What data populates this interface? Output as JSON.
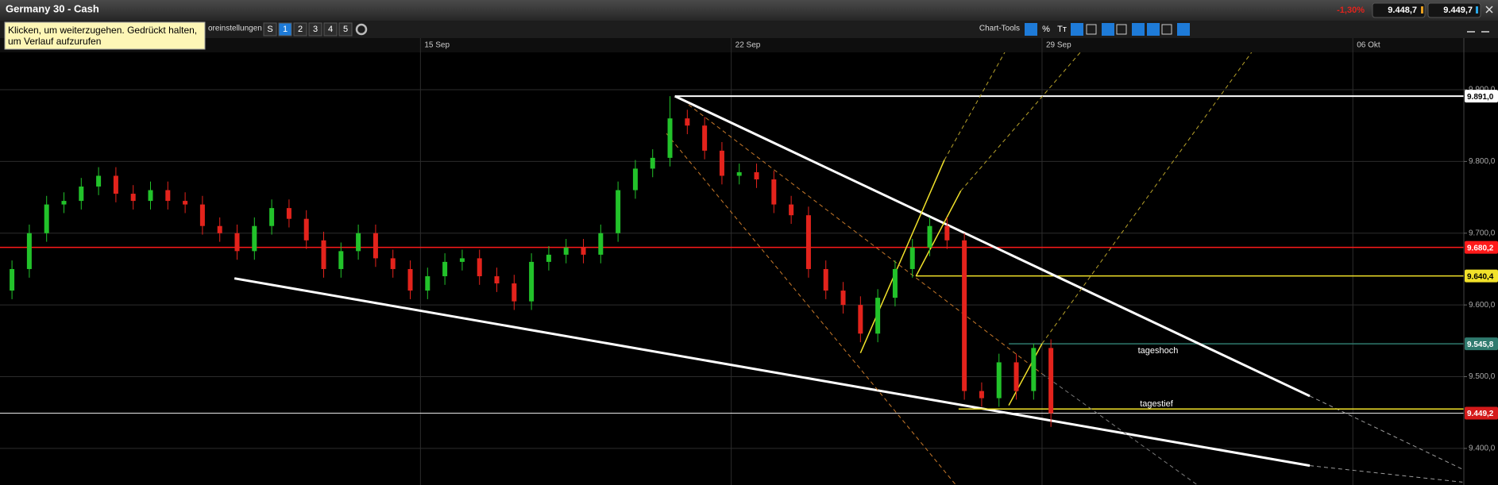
{
  "header": {
    "title": "Germany 30 - Cash",
    "change": "-1,30%",
    "bid": "9.448,7",
    "ask": "9.449,7"
  },
  "toolbar": {
    "tooltip": [
      "Klicken, um weiterzugehen. Gedrückt halten,",
      "um Verlauf aufzurufen"
    ],
    "presets_label": "oreinstellungen",
    "buttons": [
      "S",
      "1",
      "2",
      "3",
      "4",
      "5"
    ],
    "tools_label": "Chart-Tools",
    "tool_texts": [
      "%",
      "Tт"
    ]
  },
  "chart_data": {
    "type": "candlestick",
    "x": [
      -9.2,
      -8.81,
      -8.42,
      -8.03,
      -7.64,
      -7.25,
      -6.86,
      -6.47,
      -6.08,
      -5.69,
      -5.3,
      -4.91,
      -4.52,
      -4.13,
      -3.74,
      -3.35,
      -2.96,
      -2.57,
      -2.18,
      -1.79,
      -1.4,
      -1.01,
      -0.62,
      -0.23,
      0.16,
      0.55,
      0.94,
      1.33,
      1.72,
      2.11,
      2.5,
      2.89,
      3.28,
      3.67,
      4.06,
      4.45,
      4.84,
      5.23,
      5.62,
      6.01,
      6.4,
      6.79,
      7.18,
      7.57,
      7.96,
      8.35,
      8.74,
      9.13,
      9.52,
      9.91,
      10.3,
      10.69,
      11.08,
      11.47,
      11.86,
      12.25,
      12.64,
      13.03,
      13.42,
      13.81,
      14.2
    ],
    "open": [
      9620,
      9650,
      9700,
      9740,
      9745,
      9765,
      9780,
      9755,
      9745,
      9760,
      9745,
      9740,
      9710,
      9700,
      9675,
      9710,
      9735,
      9720,
      9690,
      9650,
      9675,
      9700,
      9665,
      9650,
      9620,
      9640,
      9660,
      9665,
      9640,
      9630,
      9605,
      9660,
      9670,
      9680,
      9670,
      9700,
      9760,
      9790,
      9805,
      9860,
      9850,
      9815,
      9780,
      9785,
      9775,
      9740,
      9725,
      9650,
      9620,
      9600,
      9560,
      9610,
      9650,
      9680,
      9710,
      9690,
      9480,
      9470,
      9520,
      9480,
      9540
    ],
    "high": [
      9662,
      9712,
      9752,
      9757,
      9777,
      9792,
      9792,
      9767,
      9772,
      9772,
      9757,
      9752,
      9722,
      9712,
      9722,
      9747,
      9747,
      9732,
      9702,
      9687,
      9712,
      9712,
      9677,
      9662,
      9652,
      9672,
      9677,
      9677,
      9652,
      9642,
      9672,
      9682,
      9692,
      9692,
      9712,
      9772,
      9802,
      9817,
      9891,
      9872,
      9862,
      9827,
      9797,
      9797,
      9787,
      9752,
      9737,
      9662,
      9632,
      9612,
      9622,
      9662,
      9692,
      9722,
      9722,
      9700,
      9492,
      9532,
      9532,
      9546,
      9552
    ],
    "low": [
      9608,
      9638,
      9688,
      9728,
      9733,
      9753,
      9743,
      9733,
      9733,
      9733,
      9728,
      9698,
      9688,
      9663,
      9663,
      9698,
      9708,
      9678,
      9638,
      9638,
      9663,
      9653,
      9638,
      9608,
      9608,
      9628,
      9648,
      9628,
      9618,
      9593,
      9593,
      9648,
      9658,
      9658,
      9658,
      9688,
      9748,
      9778,
      9793,
      9838,
      9803,
      9768,
      9768,
      9763,
      9728,
      9713,
      9638,
      9608,
      9588,
      9548,
      9548,
      9598,
      9638,
      9668,
      9678,
      9468,
      9458,
      9458,
      9468,
      9468,
      9430
    ],
    "close": [
      9650,
      9700,
      9740,
      9745,
      9765,
      9780,
      9755,
      9745,
      9760,
      9745,
      9740,
      9710,
      9700,
      9675,
      9710,
      9735,
      9720,
      9690,
      9650,
      9675,
      9700,
      9665,
      9650,
      9620,
      9640,
      9660,
      9665,
      9640,
      9630,
      9605,
      9660,
      9670,
      9680,
      9670,
      9700,
      9760,
      9790,
      9805,
      9860,
      9850,
      9815,
      9780,
      9785,
      9775,
      9740,
      9725,
      9650,
      9620,
      9600,
      9560,
      9610,
      9650,
      9680,
      9710,
      9690,
      9480,
      9470,
      9520,
      9480,
      9540,
      9449
    ],
    "up_color": "#22c22a",
    "down_color": "#e3231c",
    "xlim": [
      -9.47,
      23.5
    ],
    "xticks": [
      {
        "value": 0,
        "label": "15 Sep"
      },
      {
        "value": 7,
        "label": "22 Sep"
      },
      {
        "value": 14,
        "label": "29 Sep"
      },
      {
        "value": 21,
        "label": "06 Okt"
      }
    ],
    "ylim": [
      9349,
      9952
    ],
    "yticks": [
      {
        "value": 9400,
        "label": "9.400,0"
      },
      {
        "value": 9500,
        "label": "9.500,0"
      },
      {
        "value": 9600,
        "label": "9.600,0"
      },
      {
        "value": 9700,
        "label": "9.700,0"
      },
      {
        "value": 9800,
        "label": "9.800,0"
      },
      {
        "value": 9900,
        "label": "9.900,0"
      }
    ],
    "grid": true,
    "levels": [
      {
        "value": 9891.0,
        "label": "9.891,0",
        "color": "#ffffff",
        "text_color": "#000000",
        "start": 5.73
      },
      {
        "value": 9680.2,
        "label": "9.680,2",
        "color": "#ff1a1a",
        "text_color": "#ffffff"
      },
      {
        "value": 9640.4,
        "label": "9.640,4",
        "color": "#f2e22a",
        "text_color": "#000000",
        "start": 11.16
      },
      {
        "value": 9545.8,
        "label": "9.545,8",
        "color": "#2f7a6e",
        "text_color": "#ffffff",
        "start": 13.25
      },
      {
        "value": 9449.2,
        "label": "9.449,2",
        "color": "#e8e8e8",
        "text_color": "#ffffff",
        "box": "#d41a1a"
      }
    ],
    "annotations": [
      "tageshoch",
      "tagestief"
    ],
    "trendlines": [
      {
        "color": "#ffffff",
        "dashed": false,
        "points": [
          [
            5.73,
            9891
          ],
          [
            20.03,
            9473
          ]
        ]
      },
      {
        "color": "#9a9a9a",
        "dashed": true,
        "points": [
          [
            20.03,
            9473
          ],
          [
            23.47,
            9371
          ]
        ]
      },
      {
        "color": "#ffffff",
        "dashed": false,
        "points": [
          [
            -4.19,
            9637
          ],
          [
            20.03,
            9376
          ]
        ]
      },
      {
        "color": "#9a9a9a",
        "dashed": true,
        "points": [
          [
            20.03,
            9376
          ],
          [
            23.47,
            9353
          ]
        ]
      },
      {
        "color": "#f2e22a",
        "dashed": false,
        "points": [
          [
            9.91,
            9533
          ],
          [
            11.8,
            9802
          ]
        ]
      },
      {
        "color": "#b8a22a",
        "dashed": true,
        "points": [
          [
            11.8,
            9802
          ],
          [
            13.34,
            9972
          ]
        ]
      },
      {
        "color": "#f2e22a",
        "dashed": false,
        "points": [
          [
            11.16,
            9640
          ],
          [
            12.17,
            9759
          ]
        ]
      },
      {
        "color": "#b8a22a",
        "dashed": true,
        "points": [
          [
            12.17,
            9759
          ],
          [
            15.14,
            9972
          ]
        ]
      },
      {
        "color": "#f2e22a",
        "dashed": false,
        "points": [
          [
            13.25,
            9460
          ],
          [
            14.0,
            9546
          ]
        ]
      },
      {
        "color": "#b8a22a",
        "dashed": true,
        "points": [
          [
            14.0,
            9546
          ],
          [
            18.95,
            9972
          ]
        ]
      },
      {
        "color": "#f2e22a",
        "dashed": false,
        "points": [
          [
            12.12,
            9455
          ],
          [
            23.5,
            9455
          ]
        ]
      },
      {
        "color": "#c8792a",
        "dashed": true,
        "points": [
          [
            5.54,
            9839
          ],
          [
            12.06,
            9349
          ]
        ]
      },
      {
        "color": "#c8792a",
        "dashed": true,
        "points": [
          [
            6.04,
            9879
          ],
          [
            14.0,
            9504
          ]
        ]
      },
      {
        "color": "#7a7a7a",
        "dashed": true,
        "points": [
          [
            14.0,
            9504
          ],
          [
            17.5,
            9349
          ]
        ]
      }
    ]
  }
}
